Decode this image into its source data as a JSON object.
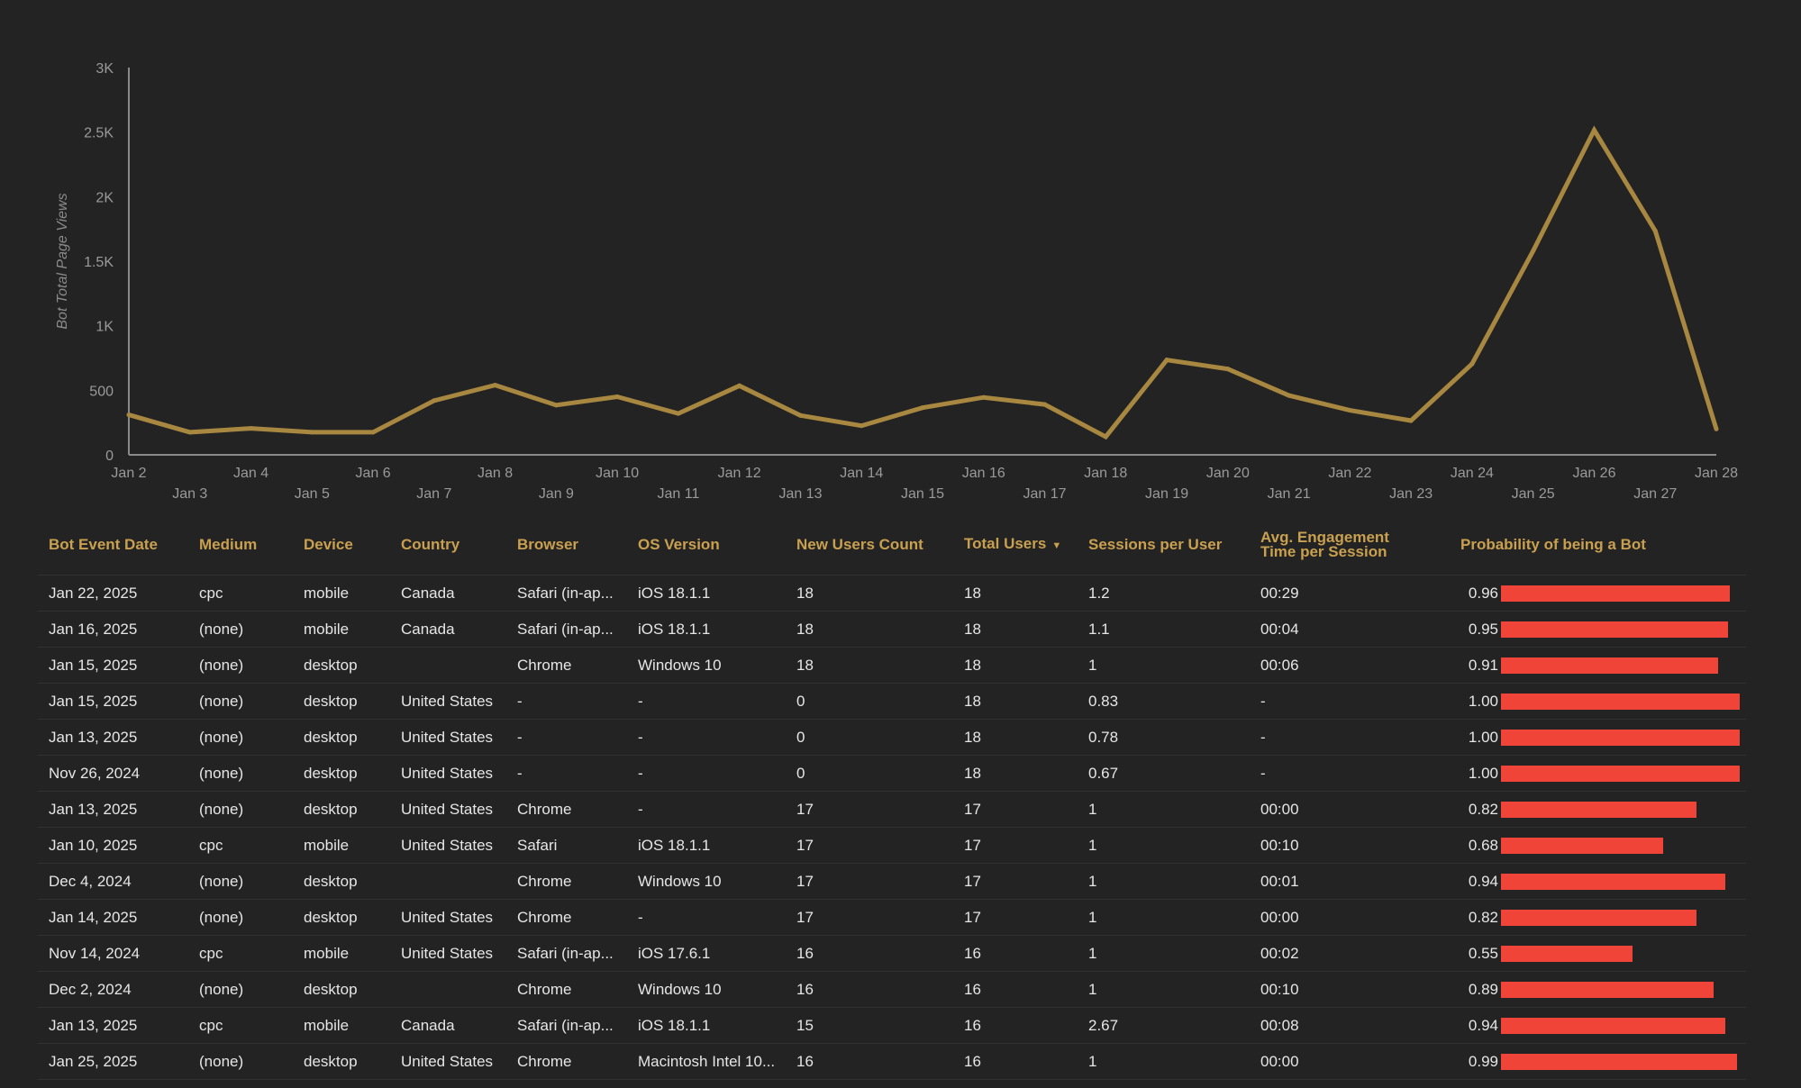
{
  "chart_data": {
    "type": "line",
    "ylabel": "Bot Total Page Views",
    "y_ticks": [
      "0",
      "500",
      "1K",
      "1.5K",
      "2K",
      "2.5K",
      "3K"
    ],
    "ylim": [
      0,
      3000
    ],
    "x": [
      "Jan 2",
      "Jan 3",
      "Jan 4",
      "Jan 5",
      "Jan 6",
      "Jan 7",
      "Jan 8",
      "Jan 9",
      "Jan 10",
      "Jan 11",
      "Jan 12",
      "Jan 13",
      "Jan 14",
      "Jan 15",
      "Jan 16",
      "Jan 17",
      "Jan 18",
      "Jan 19",
      "Jan 20",
      "Jan 21",
      "Jan 22",
      "Jan 23",
      "Jan 24",
      "Jan 25",
      "Jan 26",
      "Jan 27",
      "Jan 28"
    ],
    "series": [
      {
        "values": [
          310,
          175,
          205,
          175,
          175,
          420,
          540,
          385,
          450,
          320,
          535,
          305,
          225,
          365,
          445,
          390,
          140,
          735,
          665,
          460,
          345,
          265,
          705,
          1580,
          2515,
          1735,
          200
        ],
        "color": "#a88840"
      }
    ],
    "grid": false
  },
  "table": {
    "headers": [
      "Bot Event Date",
      "Medium",
      "Device",
      "Country",
      "Browser",
      "OS Version",
      "New Users Count",
      "Total Users",
      "Sessions per User",
      "Avg. Engagement Time per Session",
      "Probability of being a Bot"
    ],
    "sorted_column_icon": "sort-desc-icon",
    "bar_color": "#f04438",
    "rows": [
      [
        "Jan 22, 2025",
        "cpc",
        "mobile",
        "Canada",
        "Safari (in-ap...",
        "iOS 18.1.1",
        "18",
        "18",
        "1.2",
        "00:29",
        "0.96"
      ],
      [
        "Jan 16, 2025",
        "(none)",
        "mobile",
        "Canada",
        "Safari (in-ap...",
        "iOS 18.1.1",
        "18",
        "18",
        "1.1",
        "00:04",
        "0.95"
      ],
      [
        "Jan 15, 2025",
        "(none)",
        "desktop",
        "",
        "Chrome",
        "Windows 10",
        "18",
        "18",
        "1",
        "00:06",
        "0.91"
      ],
      [
        "Jan 15, 2025",
        "(none)",
        "desktop",
        "United States",
        "-",
        "-",
        "0",
        "18",
        "0.83",
        "-",
        "1.00"
      ],
      [
        "Jan 13, 2025",
        "(none)",
        "desktop",
        "United States",
        "-",
        "-",
        "0",
        "18",
        "0.78",
        "-",
        "1.00"
      ],
      [
        "Nov 26, 2024",
        "(none)",
        "desktop",
        "United States",
        "-",
        "-",
        "0",
        "18",
        "0.67",
        "-",
        "1.00"
      ],
      [
        "Jan 13, 2025",
        "(none)",
        "desktop",
        "United States",
        "Chrome",
        "-",
        "17",
        "17",
        "1",
        "00:00",
        "0.82"
      ],
      [
        "Jan 10, 2025",
        "cpc",
        "mobile",
        "United States",
        "Safari",
        "iOS 18.1.1",
        "17",
        "17",
        "1",
        "00:10",
        "0.68"
      ],
      [
        "Dec 4, 2024",
        "(none)",
        "desktop",
        "",
        "Chrome",
        "Windows 10",
        "17",
        "17",
        "1",
        "00:01",
        "0.94"
      ],
      [
        "Jan 14, 2025",
        "(none)",
        "desktop",
        "United States",
        "Chrome",
        "-",
        "17",
        "17",
        "1",
        "00:00",
        "0.82"
      ],
      [
        "Nov 14, 2024",
        "cpc",
        "mobile",
        "United States",
        "Safari (in-ap...",
        "iOS 17.6.1",
        "16",
        "16",
        "1",
        "00:02",
        "0.55"
      ],
      [
        "Dec 2, 2024",
        "(none)",
        "desktop",
        "",
        "Chrome",
        "Windows 10",
        "16",
        "16",
        "1",
        "00:10",
        "0.89"
      ],
      [
        "Jan 13, 2025",
        "cpc",
        "mobile",
        "Canada",
        "Safari (in-ap...",
        "iOS 18.1.1",
        "15",
        "16",
        "2.67",
        "00:08",
        "0.94"
      ],
      [
        "Jan 25, 2025",
        "(none)",
        "desktop",
        "United States",
        "Chrome",
        "Macintosh Intel 10...",
        "16",
        "16",
        "1",
        "00:00",
        "0.99"
      ]
    ]
  }
}
